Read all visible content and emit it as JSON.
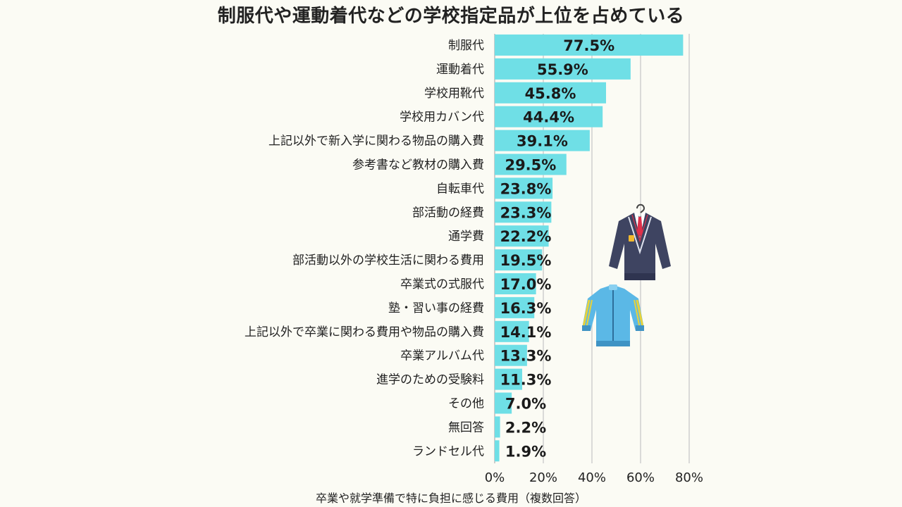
{
  "chart_data": {
    "type": "bar",
    "orientation": "horizontal",
    "title": "制服代や運動着代などの学校指定品が上位を占めている",
    "xlabel": "卒業や就学準備で特に負担に感じる費用（複数回答）",
    "ylabel": "",
    "categories": [
      "制服代",
      "運動着代",
      "学校用靴代",
      "学校用カバン代",
      "上記以外で新入学に関わる物品の購入費",
      "参考書など教材の購入費",
      "自転車代",
      "部活動の経費",
      "通学費",
      "部活動以外の学校生活に関わる費用",
      "卒業式の式服代",
      "塾・習い事の経費",
      "上記以外で卒業に関わる費用や物品の購入費",
      "卒業アルバム代",
      "進学のための受験料",
      "その他",
      "無回答",
      "ランドセル代"
    ],
    "values": [
      77.5,
      55.9,
      45.8,
      44.4,
      39.1,
      29.5,
      23.8,
      23.3,
      22.2,
      19.5,
      17.0,
      16.3,
      14.1,
      13.3,
      11.3,
      7.0,
      2.2,
      1.9
    ],
    "value_labels": [
      "77.5%",
      "55.9%",
      "45.8%",
      "44.4%",
      "39.1%",
      "29.5%",
      "23.8%",
      "23.3%",
      "22.2%",
      "19.5%",
      "17.0%",
      "16.3%",
      "14.1%",
      "13.3%",
      "11.3%",
      "7.0%",
      "2.2%",
      "1.9%"
    ],
    "x_ticks": [
      0,
      20,
      40,
      60,
      80
    ],
    "x_tick_labels": [
      "0%",
      "20%",
      "40%",
      "60%",
      "80%"
    ],
    "xlim": [
      0,
      85
    ],
    "grid": true,
    "bar_color": "#6fdfe6",
    "grid_color": "#cfcfcf"
  },
  "illustrations": [
    "blazer-illustration",
    "track-jacket-illustration"
  ]
}
